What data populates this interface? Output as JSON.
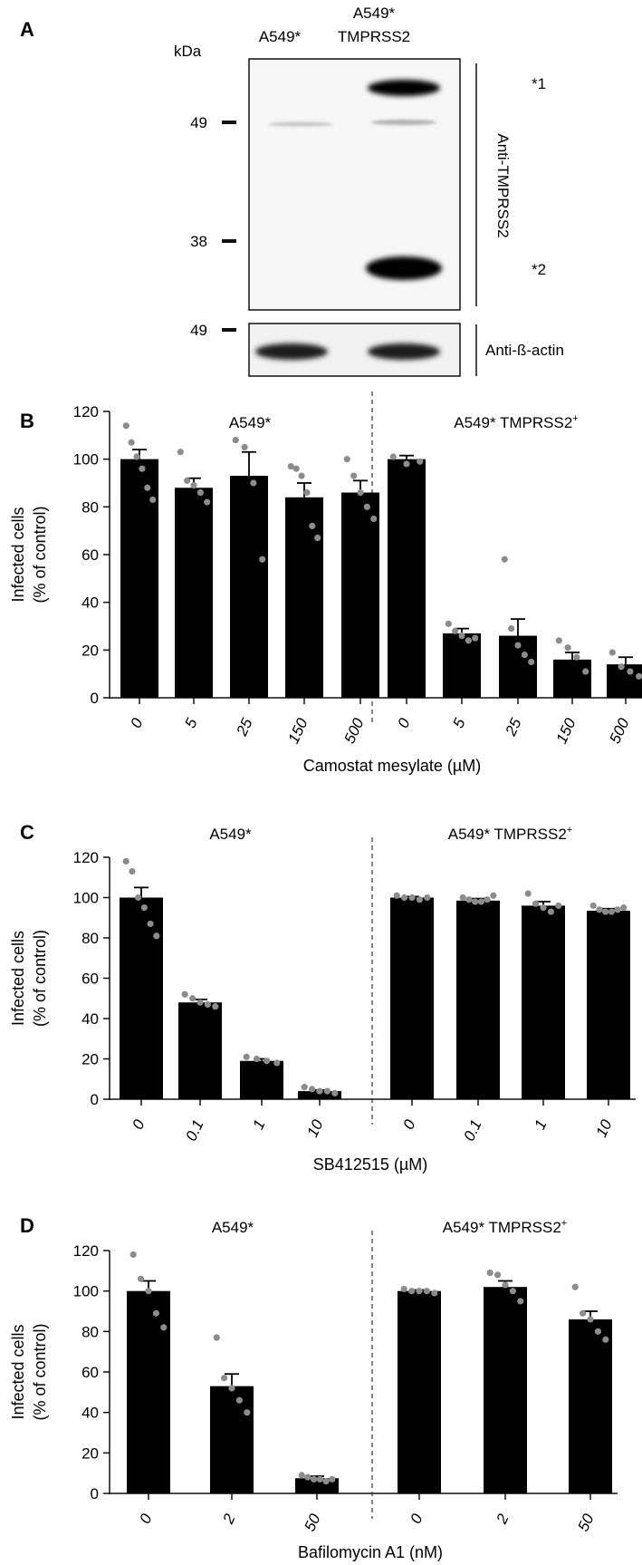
{
  "panel_a": {
    "letter": "A",
    "kda_label": "kDa",
    "lane1_label": "A549*",
    "lane2_label_line1": "A549*",
    "lane2_label_line2": "TMPRSS2",
    "markers": [
      "49",
      "38",
      "49"
    ],
    "band_label_1": "*1",
    "band_label_2": "*2",
    "antibody_top": "Anti-TMPRSS2",
    "antibody_bottom": "Anti-ß-actin"
  },
  "chart_data": [
    {
      "panel": "B",
      "type": "bar",
      "ylabel_line1": "Infected cells",
      "ylabel_line2": "(% of control)",
      "xlabel": "Camostat mesylate (µM)",
      "ylim": [
        0,
        120
      ],
      "yticks": [
        "0",
        "20",
        "40",
        "60",
        "80",
        "100",
        "120"
      ],
      "groups": [
        {
          "title": "A549*",
          "title_sup": "",
          "categories": [
            "0",
            "5",
            "25",
            "150",
            "500"
          ],
          "values": [
            100,
            88,
            93,
            84,
            86
          ],
          "errors": [
            4,
            4,
            10,
            6,
            5
          ],
          "points": [
            [
              114,
              107,
              101,
              96,
              88,
              83
            ],
            [
              103,
              91,
              89,
              86,
              82
            ],
            [
              108,
              105,
              90,
              58
            ],
            [
              97,
              96,
              93,
              86,
              72,
              67
            ],
            [
              100,
              93,
              86,
              80,
              75
            ]
          ]
        },
        {
          "title": "A549* TMPRSS2",
          "title_sup": "+",
          "categories": [
            "0",
            "5",
            "25",
            "150",
            "500"
          ],
          "values": [
            100,
            27,
            26,
            16,
            14
          ],
          "errors": [
            1.5,
            2,
            7,
            3,
            3
          ],
          "points": [
            [
              101,
              98,
              99
            ],
            [
              31,
              28,
              26,
              24,
              25
            ],
            [
              58,
              29,
              22,
              18,
              15
            ],
            [
              24,
              21,
              17,
              11
            ],
            [
              19,
              13,
              11,
              9
            ]
          ]
        }
      ]
    },
    {
      "panel": "C",
      "type": "bar",
      "ylabel_line1": "Infected cells",
      "ylabel_line2": "(% of control)",
      "xlabel": "SB412515 (µM)",
      "ylim": [
        0,
        120
      ],
      "yticks": [
        "0",
        "20",
        "40",
        "60",
        "80",
        "100",
        "120"
      ],
      "groups": [
        {
          "title": "A549*",
          "title_sup": "",
          "categories": [
            "0",
            "0.1",
            "1",
            "10"
          ],
          "values": [
            100,
            48,
            19,
            4
          ],
          "errors": [
            5,
            1.5,
            1,
            0.5
          ],
          "points": [
            [
              118,
              113,
              100,
              95,
              87,
              81
            ],
            [
              52,
              50,
              48,
              47,
              46
            ],
            [
              21,
              20,
              19,
              18
            ],
            [
              6,
              5,
              4,
              4,
              3
            ]
          ]
        },
        {
          "title": "A549* TMPRSS2",
          "title_sup": "+",
          "categories": [
            "0",
            "0.1",
            "1",
            "10"
          ],
          "values": [
            100,
            98.5,
            96,
            93.5
          ],
          "errors": [
            0.5,
            1,
            2,
            1
          ],
          "points": [
            [
              101,
              100,
              100,
              99,
              100
            ],
            [
              100,
              99,
              98,
              98,
              99,
              101
            ],
            [
              102,
              97,
              95,
              93,
              96
            ],
            [
              96,
              94,
              93,
              93,
              94,
              95
            ]
          ]
        }
      ]
    },
    {
      "panel": "D",
      "type": "bar",
      "ylabel_line1": "Infected cells",
      "ylabel_line2": "(% of control)",
      "xlabel": "Bafilomycin A1 (nM)",
      "ylim": [
        0,
        120
      ],
      "yticks": [
        "0",
        "20",
        "40",
        "60",
        "80",
        "100",
        "120"
      ],
      "groups": [
        {
          "title": "A549*",
          "title_sup": "",
          "categories": [
            "0",
            "2",
            "50"
          ],
          "values": [
            100,
            53,
            7.5
          ],
          "errors": [
            5,
            6,
            1
          ],
          "points": [
            [
              118,
              106,
              100,
              89,
              82
            ],
            [
              77,
              57,
              52,
              46,
              40
            ],
            [
              9,
              8,
              7,
              7,
              6,
              7
            ]
          ]
        },
        {
          "title": "A549* TMPRSS2",
          "title_sup": "+",
          "categories": [
            "0",
            "2",
            "50"
          ],
          "values": [
            100,
            102,
            86
          ],
          "errors": [
            0.5,
            3,
            4
          ],
          "points": [
            [
              101,
              100,
              100,
              100,
              99
            ],
            [
              109,
              108,
              103,
              100,
              95
            ],
            [
              102,
              89,
              86,
              80,
              76
            ]
          ]
        }
      ]
    }
  ]
}
